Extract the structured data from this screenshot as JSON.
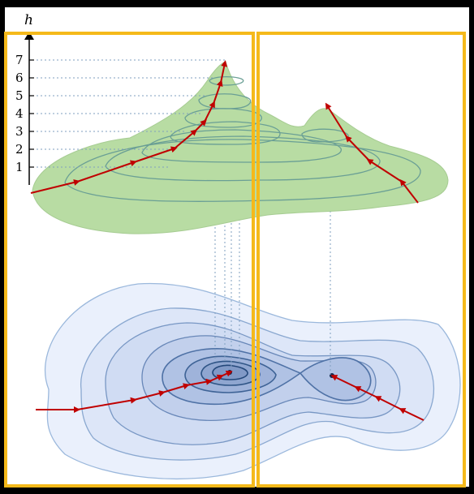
{
  "axis": {
    "name": "h",
    "ticks": [
      "1",
      "2",
      "3",
      "4",
      "5",
      "6",
      "7"
    ]
  },
  "colors": {
    "background": "#000000",
    "panel_border": "#f5b91a",
    "surface_fill": "#b8dca3",
    "surface_contour": "#6a9f95",
    "basin_fill_light": "#e6edfb",
    "basin_contour": "#5a7ea8",
    "trajectory": "#c00000",
    "guide_line": "#7f9fbf"
  },
  "icons": {
    "axis_arrow": "arrow-up-icon",
    "trajectory_arrow": "arrow-head-icon",
    "minimum_point": "dot-icon"
  }
}
